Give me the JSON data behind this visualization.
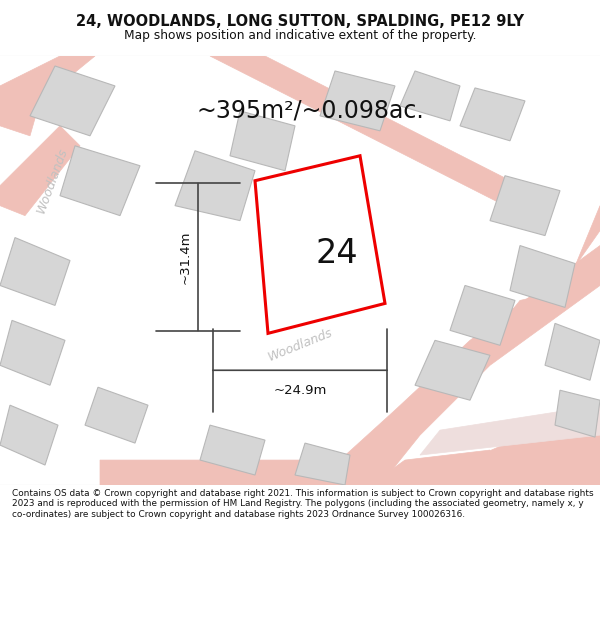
{
  "title_line1": "24, WOODLANDS, LONG SUTTON, SPALDING, PE12 9LY",
  "title_line2": "Map shows position and indicative extent of the property.",
  "area_label": "~395m²/~0.098ac.",
  "width_label": "~24.9m",
  "height_label": "~31.4m",
  "plot_number": "24",
  "footer_text": "Contains OS data © Crown copyright and database right 2021. This information is subject to Crown copyright and database rights 2023 and is reproduced with the permission of HM Land Registry. The polygons (including the associated geometry, namely x, y co-ordinates) are subject to Crown copyright and database rights 2023 Ordnance Survey 100026316.",
  "map_bg": "#f8f8f8",
  "road_fill": "#f2c4be",
  "road_edge": "#e8a8a0",
  "building_fill": "#d6d6d6",
  "building_edge": "#b8b8b8",
  "plot_edge": "#ee0000",
  "plot_fill": "#ffffff",
  "dim_color": "#444444",
  "road_label_color": "#b0b0b0",
  "title_color": "#111111",
  "footer_color": "#111111",
  "divider_color": "#cccccc"
}
